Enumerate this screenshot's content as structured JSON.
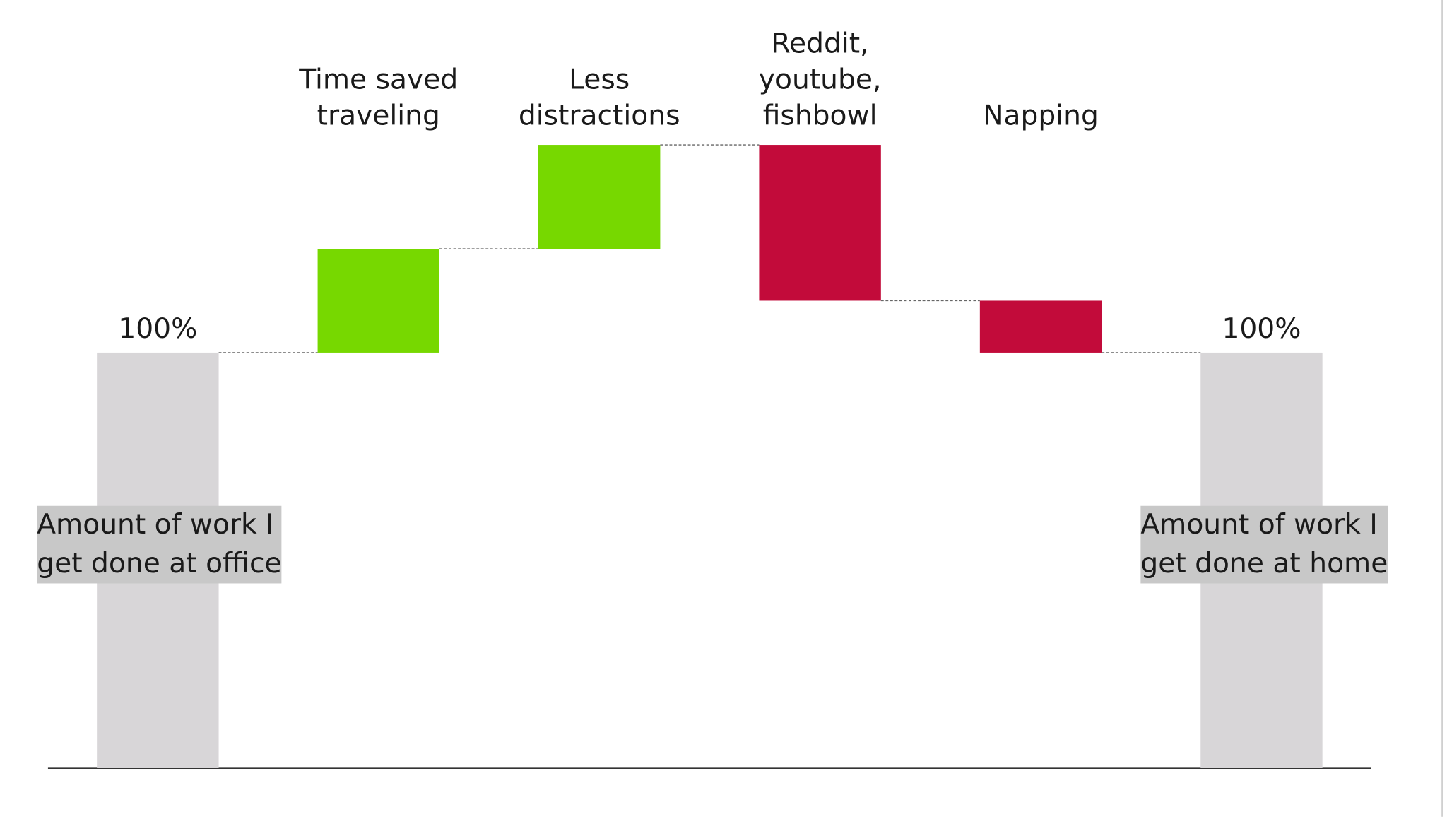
{
  "chart_data": {
    "type": "waterfall",
    "categories": [
      "Amount of work I\nget done at office",
      "Time saved\ntraveling",
      "Less\ndistractions",
      "Reddit,\nyoutube,\nfishbowl",
      "Napping",
      "Amount of work I\nget done at home"
    ],
    "values": [
      100,
      25,
      25,
      -37.5,
      -12.5,
      100
    ],
    "value_labels": [
      "100%",
      null,
      null,
      null,
      null,
      "100%"
    ],
    "measures": [
      "absolute",
      "relative",
      "relative",
      "relative",
      "relative",
      "total"
    ],
    "colors": {
      "total": "#d8d6d8",
      "increase": "#77d800",
      "decrease": "#c20b3a"
    },
    "ylim": [
      0,
      180
    ]
  }
}
